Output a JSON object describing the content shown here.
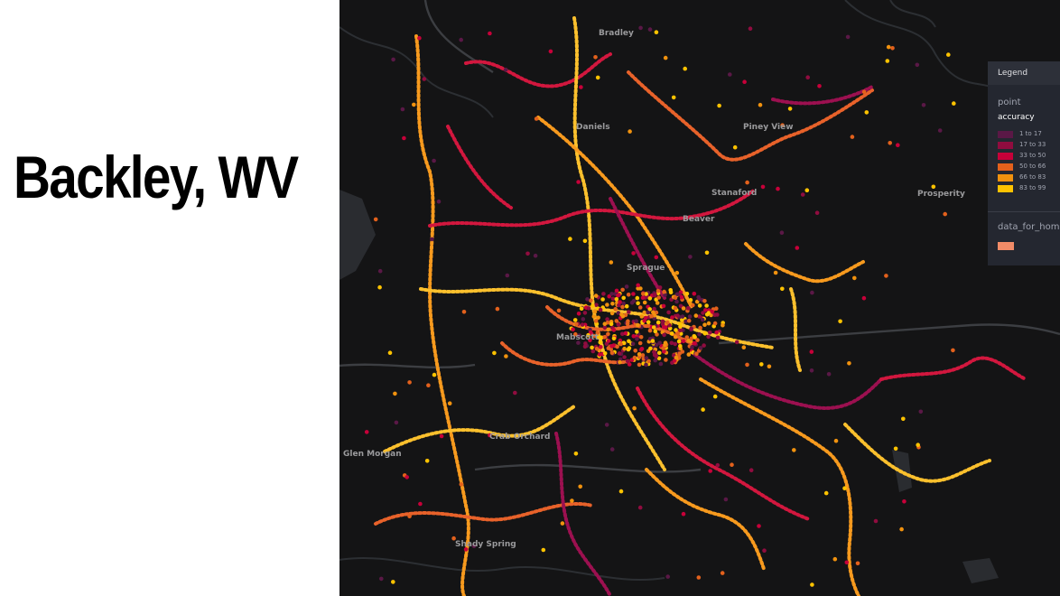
{
  "slide": {
    "title": "Backley, WV"
  },
  "map": {
    "background": "#141415",
    "place_labels": [
      "Bradley",
      "Piney View",
      "Daniels",
      "Beaver",
      "Stanaford",
      "Mabscott",
      "Crab Orchard",
      "Sprague",
      "Shady Spring",
      "Glen Morgan",
      "Prosperity"
    ],
    "route_colors": [
      "#f79a1e",
      "#d2173e",
      "#fbc02d",
      "#e8622a",
      "#9c1050"
    ]
  },
  "legend": {
    "header": "Legend",
    "layer_name": "point",
    "field": "accuracy",
    "bins": [
      {
        "label": "1 to 17",
        "color": "#5a1846"
      },
      {
        "label": "17 to 33",
        "color": "#900c3f"
      },
      {
        "label": "33 to 50",
        "color": "#c70039"
      },
      {
        "label": "50 to 66",
        "color": "#e3611c"
      },
      {
        "label": "66 to 83",
        "color": "#f1920e"
      },
      {
        "label": "83 to 99",
        "color": "#ffc300"
      }
    ],
    "layer2_name": "data_for_hom",
    "layer2_color": "#f28c68"
  }
}
